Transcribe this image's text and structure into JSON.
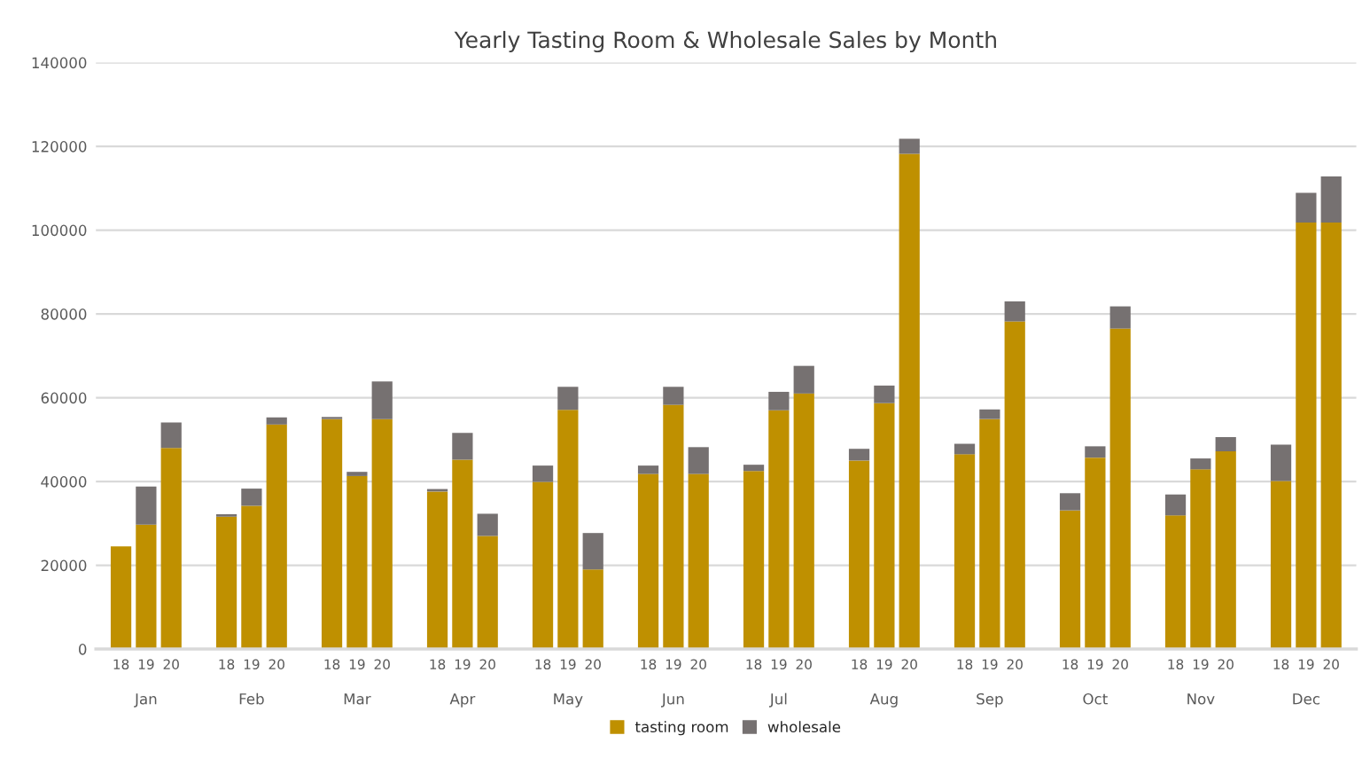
{
  "chart_data": {
    "type": "bar",
    "title": "Yearly Tasting Room & Wholesale Sales by Month",
    "stacked": true,
    "categories": [
      "18",
      "19",
      "20",
      "18",
      "19",
      "20",
      "18",
      "19",
      "20",
      "18",
      "19",
      "20",
      "18",
      "19",
      "20",
      "18",
      "19",
      "20",
      "18",
      "19",
      "20",
      "18",
      "19",
      "20",
      "18",
      "19",
      "20",
      "18",
      "19",
      "20",
      "18",
      "19",
      "20",
      "18",
      "19",
      "20"
    ],
    "annotations": [
      "Jan",
      "Feb",
      "Mar",
      "Apr",
      "May",
      "Jun",
      "Jul",
      "Aug",
      "Sep",
      "Oct",
      "Nov",
      "Dec"
    ],
    "series": [
      {
        "name": "tasting room",
        "color": "#bf9000",
        "values": [
          24500,
          29700,
          48000,
          31600,
          34200,
          53600,
          54900,
          41300,
          54900,
          37600,
          45200,
          27000,
          39900,
          57100,
          19000,
          41800,
          58300,
          41800,
          42500,
          57000,
          61000,
          45000,
          58700,
          118200,
          46500,
          54900,
          78200,
          33100,
          45700,
          76500,
          31900,
          42900,
          47200,
          40100,
          101800,
          101800
        ]
      },
      {
        "name": "wholesale",
        "color": "#767171",
        "values": [
          null,
          9100,
          6100,
          600,
          4100,
          1700,
          500,
          1000,
          9000,
          600,
          6400,
          5300,
          3900,
          5500,
          8700,
          2000,
          4300,
          6400,
          1500,
          4400,
          6600,
          2800,
          4200,
          3600,
          2500,
          2300,
          4800,
          4100,
          2700,
          5300,
          5000,
          2600,
          3400,
          8700,
          7100,
          11000
        ]
      }
    ],
    "ylim": [
      0,
      140000
    ],
    "yticks": [
      0,
      20000,
      40000,
      60000,
      80000,
      100000,
      120000,
      140000
    ],
    "grid": "y",
    "legend": "bottom"
  }
}
